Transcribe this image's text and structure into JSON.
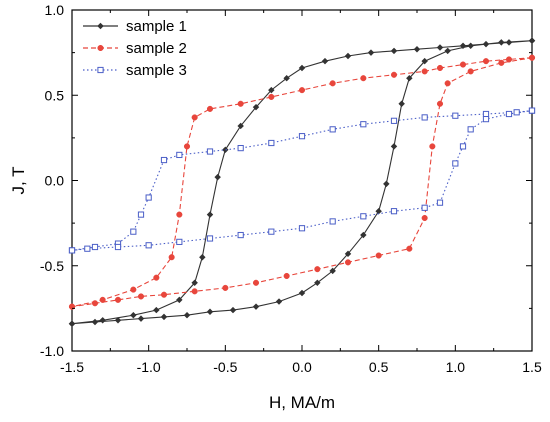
{
  "chart_data": {
    "type": "line",
    "title": "",
    "xlabel": "H, MA/m",
    "ylabel": "J, T",
    "xlim": [
      -1.5,
      1.5
    ],
    "ylim": [
      -1.0,
      1.0
    ],
    "xticks": [
      "-1.5",
      "-1.0",
      "-0.5",
      "0.0",
      "0.5",
      "1.0",
      "1.5"
    ],
    "yticks": [
      "-1.0",
      "-0.5",
      "0.0",
      "0.5",
      "1.0"
    ],
    "grid": false,
    "legend_position": "top-left",
    "series": [
      {
        "name": "sample 1",
        "color": "#333333",
        "line_style": "solid",
        "marker": "filled-diamond",
        "points": [
          [
            1.5,
            0.82
          ],
          [
            1.35,
            0.81
          ],
          [
            1.2,
            0.8
          ],
          [
            1.05,
            0.79
          ],
          [
            0.9,
            0.78
          ],
          [
            0.75,
            0.77
          ],
          [
            0.6,
            0.76
          ],
          [
            0.45,
            0.75
          ],
          [
            0.3,
            0.73
          ],
          [
            0.15,
            0.7
          ],
          [
            0.0,
            0.66
          ],
          [
            -0.1,
            0.6
          ],
          [
            -0.2,
            0.53
          ],
          [
            -0.3,
            0.43
          ],
          [
            -0.4,
            0.32
          ],
          [
            -0.5,
            0.18
          ],
          [
            -0.55,
            0.02
          ],
          [
            -0.6,
            -0.2
          ],
          [
            -0.65,
            -0.45
          ],
          [
            -0.7,
            -0.6
          ],
          [
            -0.8,
            -0.7
          ],
          [
            -0.95,
            -0.76
          ],
          [
            -1.1,
            -0.79
          ],
          [
            -1.3,
            -0.82
          ],
          [
            -1.5,
            -0.84
          ],
          [
            -1.5,
            -0.84
          ],
          [
            -1.35,
            -0.83
          ],
          [
            -1.2,
            -0.82
          ],
          [
            -1.05,
            -0.81
          ],
          [
            -0.9,
            -0.8
          ],
          [
            -0.75,
            -0.79
          ],
          [
            -0.6,
            -0.77
          ],
          [
            -0.45,
            -0.76
          ],
          [
            -0.3,
            -0.74
          ],
          [
            -0.15,
            -0.71
          ],
          [
            0.0,
            -0.66
          ],
          [
            0.1,
            -0.6
          ],
          [
            0.2,
            -0.53
          ],
          [
            0.3,
            -0.43
          ],
          [
            0.4,
            -0.32
          ],
          [
            0.5,
            -0.18
          ],
          [
            0.55,
            -0.02
          ],
          [
            0.6,
            0.2
          ],
          [
            0.65,
            0.45
          ],
          [
            0.7,
            0.6
          ],
          [
            0.8,
            0.7
          ],
          [
            0.95,
            0.76
          ],
          [
            1.1,
            0.79
          ],
          [
            1.3,
            0.81
          ],
          [
            1.5,
            0.82
          ]
        ]
      },
      {
        "name": "sample 2",
        "color": "#e8463c",
        "line_style": "dashed",
        "marker": "filled-circle",
        "points": [
          [
            1.5,
            0.72
          ],
          [
            1.35,
            0.71
          ],
          [
            1.2,
            0.7
          ],
          [
            1.05,
            0.68
          ],
          [
            0.9,
            0.66
          ],
          [
            0.8,
            0.64
          ],
          [
            0.6,
            0.62
          ],
          [
            0.4,
            0.6
          ],
          [
            0.2,
            0.57
          ],
          [
            0.0,
            0.53
          ],
          [
            -0.2,
            0.49
          ],
          [
            -0.4,
            0.45
          ],
          [
            -0.6,
            0.42
          ],
          [
            -0.7,
            0.37
          ],
          [
            -0.75,
            0.2
          ],
          [
            -0.8,
            -0.2
          ],
          [
            -0.85,
            -0.45
          ],
          [
            -0.95,
            -0.57
          ],
          [
            -1.1,
            -0.64
          ],
          [
            -1.3,
            -0.7
          ],
          [
            -1.5,
            -0.74
          ],
          [
            -1.5,
            -0.74
          ],
          [
            -1.35,
            -0.72
          ],
          [
            -1.2,
            -0.7
          ],
          [
            -1.05,
            -0.68
          ],
          [
            -0.9,
            -0.67
          ],
          [
            -0.7,
            -0.65
          ],
          [
            -0.5,
            -0.63
          ],
          [
            -0.3,
            -0.6
          ],
          [
            -0.1,
            -0.56
          ],
          [
            0.1,
            -0.52
          ],
          [
            0.3,
            -0.48
          ],
          [
            0.5,
            -0.44
          ],
          [
            0.7,
            -0.4
          ],
          [
            0.8,
            -0.22
          ],
          [
            0.85,
            0.2
          ],
          [
            0.9,
            0.45
          ],
          [
            0.95,
            0.57
          ],
          [
            1.1,
            0.64
          ],
          [
            1.3,
            0.69
          ],
          [
            1.5,
            0.72
          ]
        ]
      },
      {
        "name": "sample 3",
        "color": "#4a5ec7",
        "line_style": "dotted",
        "marker": "open-square",
        "points": [
          [
            1.5,
            0.41
          ],
          [
            1.4,
            0.4
          ],
          [
            1.2,
            0.39
          ],
          [
            1.0,
            0.38
          ],
          [
            0.8,
            0.37
          ],
          [
            0.6,
            0.35
          ],
          [
            0.4,
            0.33
          ],
          [
            0.2,
            0.3
          ],
          [
            0.0,
            0.26
          ],
          [
            -0.2,
            0.22
          ],
          [
            -0.4,
            0.19
          ],
          [
            -0.6,
            0.17
          ],
          [
            -0.8,
            0.15
          ],
          [
            -0.9,
            0.12
          ],
          [
            -1.0,
            -0.1
          ],
          [
            -1.05,
            -0.2
          ],
          [
            -1.1,
            -0.3
          ],
          [
            -1.2,
            -0.37
          ],
          [
            -1.35,
            -0.39
          ],
          [
            -1.5,
            -0.41
          ],
          [
            -1.5,
            -0.41
          ],
          [
            -1.4,
            -0.4
          ],
          [
            -1.2,
            -0.39
          ],
          [
            -1.0,
            -0.38
          ],
          [
            -0.8,
            -0.36
          ],
          [
            -0.6,
            -0.34
          ],
          [
            -0.4,
            -0.32
          ],
          [
            -0.2,
            -0.3
          ],
          [
            0.0,
            -0.28
          ],
          [
            0.2,
            -0.24
          ],
          [
            0.4,
            -0.21
          ],
          [
            0.6,
            -0.18
          ],
          [
            0.8,
            -0.16
          ],
          [
            0.9,
            -0.13
          ],
          [
            1.0,
            0.1
          ],
          [
            1.05,
            0.2
          ],
          [
            1.1,
            0.3
          ],
          [
            1.2,
            0.36
          ],
          [
            1.35,
            0.39
          ],
          [
            1.5,
            0.41
          ]
        ]
      }
    ]
  }
}
